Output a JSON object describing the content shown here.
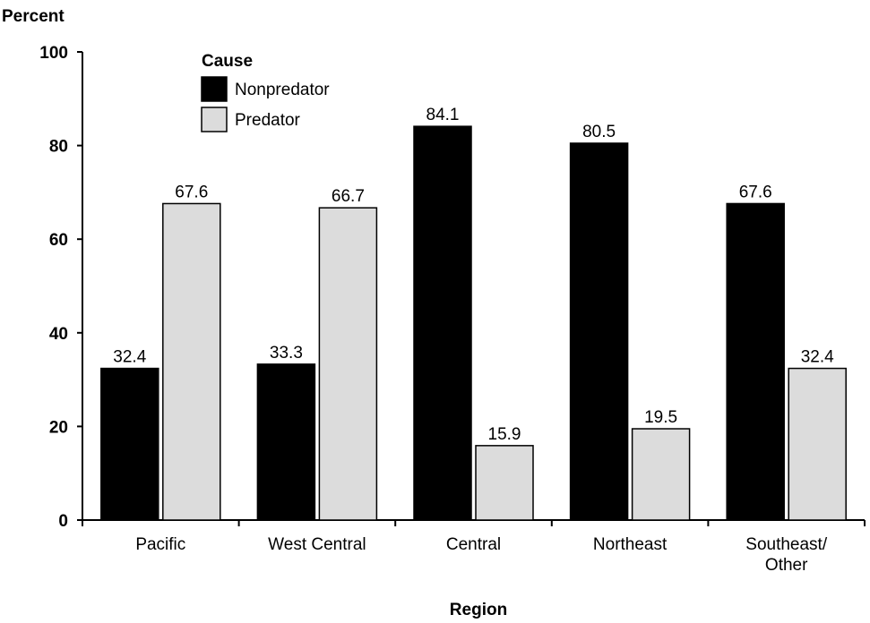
{
  "chart_data": {
    "type": "bar",
    "title": "",
    "ylabel": "Percent",
    "xlabel": "Region",
    "ylim": [
      0,
      100
    ],
    "yticks": [
      0,
      20,
      40,
      60,
      80,
      100
    ],
    "grid": false,
    "legend_title": "Cause",
    "legend_position": "top-left",
    "categories": [
      [
        "Pacific"
      ],
      [
        "West Central"
      ],
      [
        "Central"
      ],
      [
        "Northeast"
      ],
      [
        "Southeast/",
        "Other"
      ]
    ],
    "series": [
      {
        "name": "Nonpredator",
        "color": "#000000",
        "values": [
          32.4,
          33.3,
          84.1,
          80.5,
          67.6
        ]
      },
      {
        "name": "Predator",
        "color": "#dcdcdc",
        "values": [
          67.6,
          66.7,
          15.9,
          19.5,
          32.4
        ]
      }
    ],
    "data_labels": [
      [
        "32.4",
        "33.3",
        "84.1",
        "80.5",
        "67.6"
      ],
      [
        "67.6",
        "66.7",
        "15.9",
        "19.5",
        "32.4"
      ]
    ]
  }
}
